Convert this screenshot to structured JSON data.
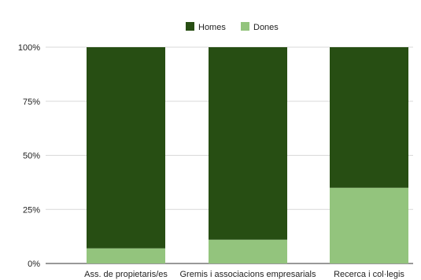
{
  "chart_data": {
    "type": "bar",
    "stacked": true,
    "categories": [
      "Ass. de propietaris/es",
      "Gremis i associacions empresarials",
      "Recerca i col·legis"
    ],
    "series": [
      {
        "name": "Homes",
        "values": [
          93,
          89,
          65
        ],
        "color": "#274e13"
      },
      {
        "name": "Dones",
        "values": [
          7,
          11,
          35
        ],
        "color": "#93c47d"
      }
    ],
    "y_ticks": [
      "0%",
      "25%",
      "50%",
      "75%",
      "100%"
    ],
    "ylim": [
      0,
      100
    ],
    "grid": true,
    "legend_position": "top-center"
  }
}
